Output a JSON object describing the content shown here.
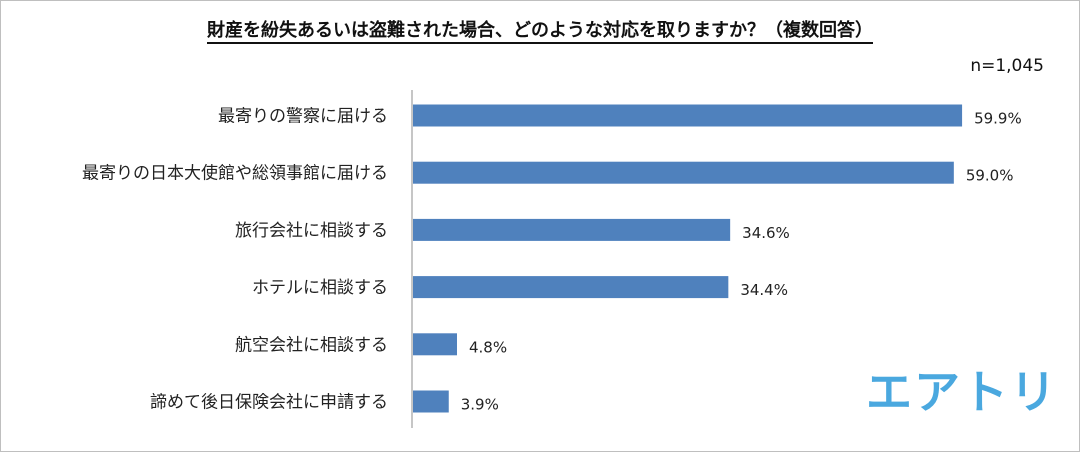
{
  "chart_data": {
    "type": "bar",
    "orientation": "horizontal",
    "title": "財産を紛失あるいは盗難された場合、どのような対応を取りますか？（複数回答）",
    "sample_size": "n=1,045",
    "categories": [
      "最寄りの警察に届ける",
      "最寄りの日本大使館や総領事館に届ける",
      "旅行会社に相談する",
      "ホテルに相談する",
      "航空会社に相談する",
      "諦めて後日保険会社に申請する"
    ],
    "values": [
      59.9,
      59.0,
      34.6,
      34.4,
      4.8,
      3.9
    ],
    "value_labels": [
      "59.9%",
      "59.0%",
      "34.6%",
      "34.4%",
      "4.8%",
      "3.9%"
    ],
    "unit": "%",
    "xlim": [
      0,
      60
    ],
    "grid": false,
    "bar_color": "#4f81bd"
  },
  "logo_text": "エアトリ",
  "logo_color": "#4aa8df"
}
